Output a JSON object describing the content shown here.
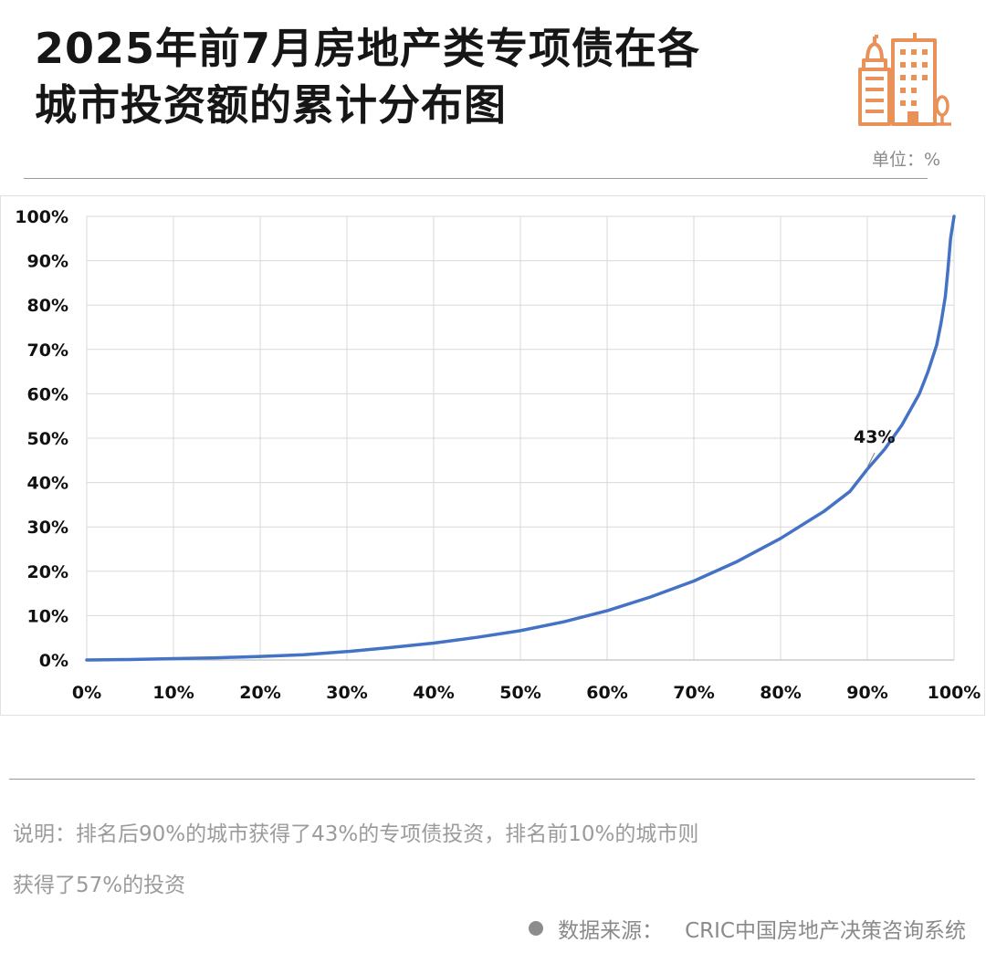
{
  "header": {
    "title_line1": "2025年前7月房地产类专项债在各",
    "title_line2": "城市投资额的累计分布图",
    "unit": "单位：%",
    "logo_icon": "city-buildings-icon",
    "accent_color": "#e8925a"
  },
  "chart_data": {
    "type": "line",
    "x_ticks": [
      "0%",
      "10%",
      "20%",
      "30%",
      "40%",
      "50%",
      "60%",
      "70%",
      "80%",
      "90%",
      "100%"
    ],
    "y_ticks": [
      "0%",
      "10%",
      "20%",
      "30%",
      "40%",
      "50%",
      "60%",
      "70%",
      "80%",
      "90%",
      "100%"
    ],
    "xlim": [
      0,
      100
    ],
    "ylim": [
      0,
      100
    ],
    "grid": true,
    "line_color": "#4472c4",
    "series": [
      {
        "x": [
          0,
          5,
          10,
          15,
          20,
          25,
          30,
          35,
          40,
          45,
          50,
          55,
          60,
          65,
          70,
          75,
          80,
          85,
          88,
          90,
          92,
          94,
          96,
          97,
          98,
          98.5,
          99,
          99.3,
          99.6,
          100
        ],
        "y": [
          0,
          0.1,
          0.3,
          0.5,
          0.8,
          1.2,
          1.9,
          2.8,
          3.8,
          5.1,
          6.6,
          8.6,
          11.1,
          14.2,
          17.8,
          22.2,
          27.4,
          33.5,
          38,
          43,
          47.5,
          53,
          60,
          65,
          71,
          76,
          82,
          88,
          95,
          100
        ]
      }
    ],
    "annotations": [
      {
        "text": "43%",
        "x": 90,
        "y": 43
      }
    ]
  },
  "footer": {
    "note_line1": "说明：排名后90%的城市获得了43%的专项债投资，排名前10%的城市则",
    "note_line2": "获得了57%的投资",
    "source_label": "数据来源：",
    "source_text": "CRIC中国房地产决策咨询系统"
  }
}
